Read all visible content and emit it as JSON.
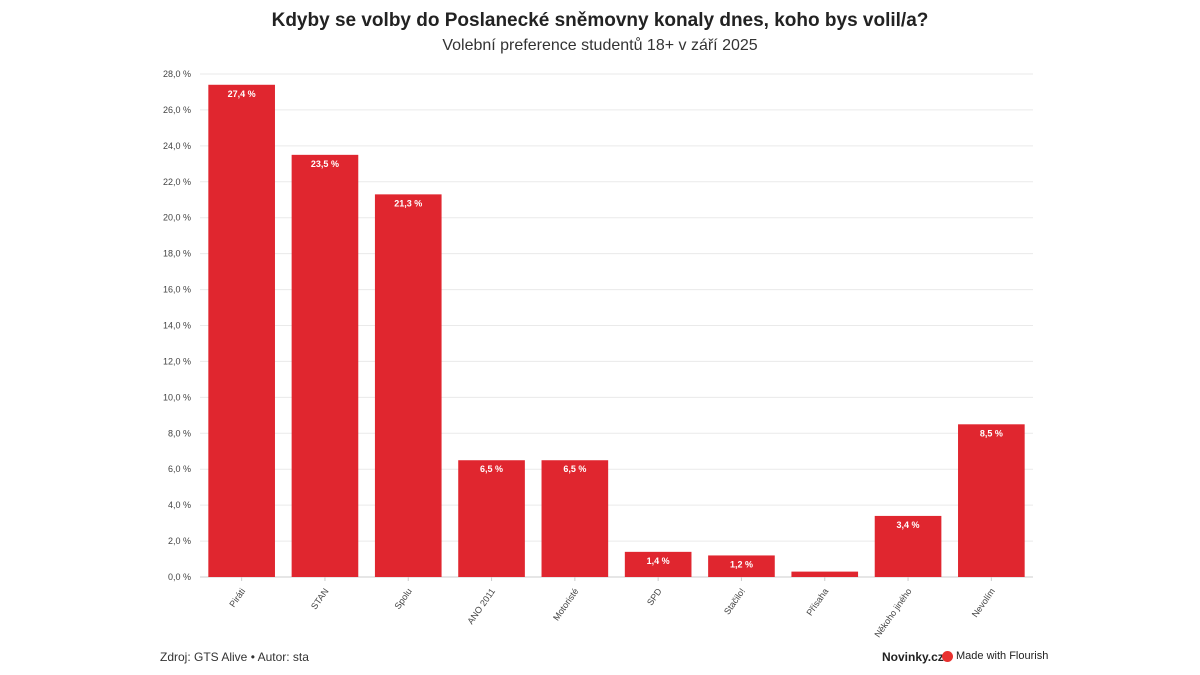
{
  "header": {
    "title": "Kdyby se volby do Poslanecké sněmovny konaly dnes, koho bys volil/a?",
    "subtitle": "Volební preference studentů 18+ v září 2025"
  },
  "footer": {
    "source": "Zdroj: GTS Alive • Autor: sta",
    "brand": "Novinky.cz",
    "made_with": "Made with Flourish",
    "made_with_icon": "flourish-logo-icon"
  },
  "chart_data": {
    "type": "bar",
    "title": "Kdyby se volby do Poslanecké sněmovny konaly dnes, koho bys volil/a?",
    "subtitle": "Volební preference studentů 18+ v září 2025",
    "categories": [
      "Piráti",
      "STAN",
      "Spolu",
      "ANO 2011",
      "Motoristé",
      "SPD",
      "Stačilo!",
      "Přísaha",
      "Někoho jiného",
      "Nevolím"
    ],
    "values": [
      27.4,
      23.5,
      21.3,
      6.5,
      6.5,
      1.4,
      1.2,
      0.3,
      3.4,
      8.5
    ],
    "data_labels": [
      "27,4 %",
      "23,5 %",
      "21,3 %",
      "6,5 %",
      "6,5 %",
      "1,4 %",
      "1,2 %",
      "",
      "3,4 %",
      "8,5 %"
    ],
    "ylim": [
      0,
      28
    ],
    "yticks": [
      "0,0 %",
      "2,0 %",
      "4,0 %",
      "6,0 %",
      "8,0 %",
      "10,0 %",
      "12,0 %",
      "14,0 %",
      "16,0 %",
      "18,0 %",
      "20,0 %",
      "22,0 %",
      "24,0 %",
      "26,0 %",
      "28,0 %"
    ],
    "grid": true,
    "bar_color": "#e0262f",
    "xlabel": "",
    "ylabel": ""
  }
}
